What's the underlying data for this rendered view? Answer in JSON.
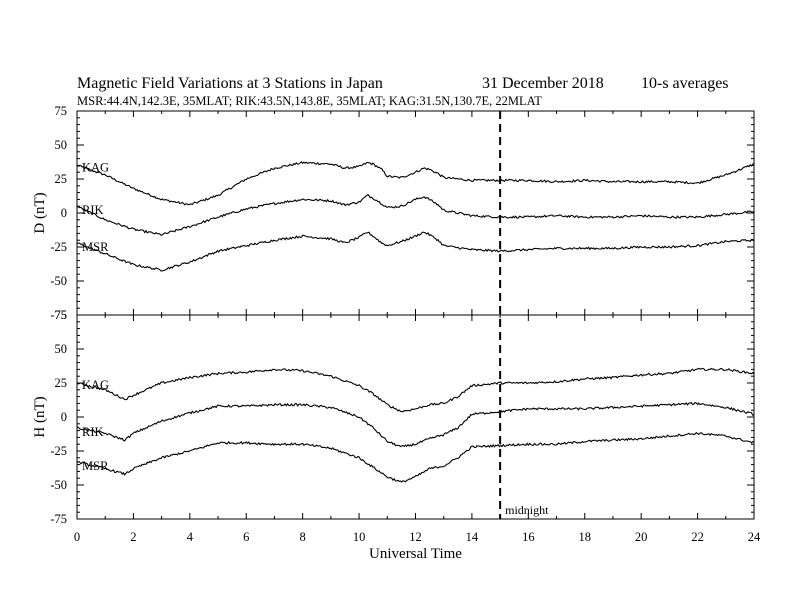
{
  "chart_data": [
    {
      "type": "line",
      "panel": "D",
      "title": "Magnetic Field Variations at 3 Stations in Japan",
      "date": "31 December 2018",
      "averaging": "10-s averages",
      "station_info": "MSR:44.4N,142.3E, 35MLAT;  RIK:43.5N,143.8E, 35MLAT;  KAG:31.5N,130.7E, 22MLAT",
      "ylabel": "D (nT)",
      "ylim": [
        -75,
        75
      ],
      "yticks": [
        75,
        50,
        25,
        0,
        -25,
        -50,
        -75
      ],
      "xlim": [
        0,
        24
      ],
      "grid": false,
      "series": [
        {
          "name": "KAG",
          "x": [
            0,
            1,
            2,
            3,
            4,
            5,
            6,
            7,
            8,
            9,
            9.5,
            10,
            10.3,
            10.5,
            10.8,
            11,
            11.5,
            12,
            12.3,
            12.5,
            12.8,
            13,
            14,
            15,
            16,
            17,
            18,
            19,
            20,
            21,
            22,
            23,
            24
          ],
          "values": [
            35,
            28,
            18,
            10,
            6,
            13,
            25,
            33,
            37,
            36,
            33,
            34,
            37,
            36,
            32,
            27,
            26,
            30,
            33,
            32,
            29,
            26,
            24,
            24,
            24,
            23,
            24,
            23,
            23,
            23,
            22,
            28,
            36
          ]
        },
        {
          "name": "RIK",
          "x": [
            0,
            1,
            2,
            3,
            4,
            5,
            6,
            7,
            8,
            9,
            9.5,
            10,
            10.3,
            10.5,
            10.8,
            11,
            11.5,
            12,
            12.3,
            12.5,
            12.8,
            13,
            14,
            15,
            16,
            17,
            18,
            19,
            20,
            21,
            22,
            23,
            24
          ],
          "values": [
            5,
            -5,
            -12,
            -16,
            -10,
            -3,
            3,
            7,
            10,
            9,
            6,
            8,
            13,
            11,
            7,
            4,
            5,
            10,
            12,
            10,
            6,
            2,
            -2,
            -3,
            -3,
            -2,
            -3,
            -3,
            -2,
            -3,
            -3,
            -1,
            1
          ]
        },
        {
          "name": "MSR",
          "x": [
            0,
            1,
            2,
            3,
            4,
            5,
            6,
            7,
            8,
            9,
            9.5,
            10,
            10.3,
            10.5,
            10.8,
            11,
            11.5,
            12,
            12.3,
            12.5,
            12.8,
            13,
            14,
            15,
            16,
            17,
            18,
            19,
            20,
            21,
            22,
            23,
            24
          ],
          "values": [
            -22,
            -30,
            -38,
            -42,
            -36,
            -28,
            -24,
            -20,
            -17,
            -19,
            -22,
            -18,
            -14,
            -17,
            -22,
            -24,
            -21,
            -17,
            -14,
            -16,
            -20,
            -24,
            -27,
            -28,
            -27,
            -26,
            -26,
            -26,
            -25,
            -25,
            -24,
            -21,
            -20
          ]
        }
      ]
    },
    {
      "type": "line",
      "panel": "H",
      "ylabel": "H (nT)",
      "xlabel": "Universal Time",
      "ylim": [
        -75,
        75
      ],
      "yticks": [
        75,
        50,
        25,
        0,
        -25,
        -50,
        -75
      ],
      "xlim": [
        0,
        24
      ],
      "xticks": [
        0,
        2,
        4,
        6,
        8,
        10,
        12,
        14,
        16,
        18,
        20,
        22,
        24
      ],
      "grid": false,
      "series": [
        {
          "name": "KAG",
          "x": [
            0,
            1,
            1.7,
            2,
            3,
            4,
            5,
            6,
            7,
            8,
            9,
            10,
            10.5,
            11,
            11.5,
            12,
            12.5,
            13,
            13.5,
            14,
            15,
            16,
            17,
            18,
            19,
            20,
            21,
            22,
            23,
            24
          ],
          "values": [
            25,
            20,
            13,
            16,
            25,
            29,
            32,
            33,
            35,
            34,
            30,
            23,
            17,
            9,
            4,
            6,
            9,
            10,
            15,
            23,
            25,
            25,
            26,
            28,
            29,
            31,
            32,
            35,
            35,
            32
          ]
        },
        {
          "name": "RIK",
          "x": [
            0,
            1,
            1.7,
            2,
            3,
            4,
            5,
            6,
            7,
            8,
            9,
            10,
            10.5,
            11,
            11.5,
            12,
            12.5,
            13,
            13.5,
            14,
            15,
            16,
            17,
            18,
            19,
            20,
            21,
            22,
            23,
            24
          ],
          "values": [
            -8,
            -12,
            -17,
            -12,
            -3,
            3,
            8,
            8,
            9,
            9,
            7,
            0,
            -8,
            -18,
            -22,
            -20,
            -16,
            -13,
            -8,
            2,
            4,
            6,
            6,
            6,
            7,
            8,
            9,
            10,
            7,
            2
          ]
        },
        {
          "name": "MSR",
          "x": [
            0,
            1,
            1.7,
            2,
            3,
            4,
            5,
            6,
            7,
            8,
            9,
            10,
            10.5,
            11,
            11.5,
            12,
            12.5,
            13,
            13.5,
            14,
            15,
            16,
            17,
            18,
            19,
            20,
            21,
            22,
            23,
            24
          ],
          "values": [
            -33,
            -38,
            -42,
            -38,
            -30,
            -25,
            -19,
            -19,
            -20,
            -20,
            -23,
            -30,
            -37,
            -44,
            -48,
            -44,
            -38,
            -36,
            -30,
            -22,
            -21,
            -20,
            -20,
            -18,
            -17,
            -16,
            -14,
            -12,
            -14,
            -19
          ]
        }
      ]
    }
  ],
  "annotations": {
    "midnight_label": "midnight",
    "midnight_x": 15
  }
}
